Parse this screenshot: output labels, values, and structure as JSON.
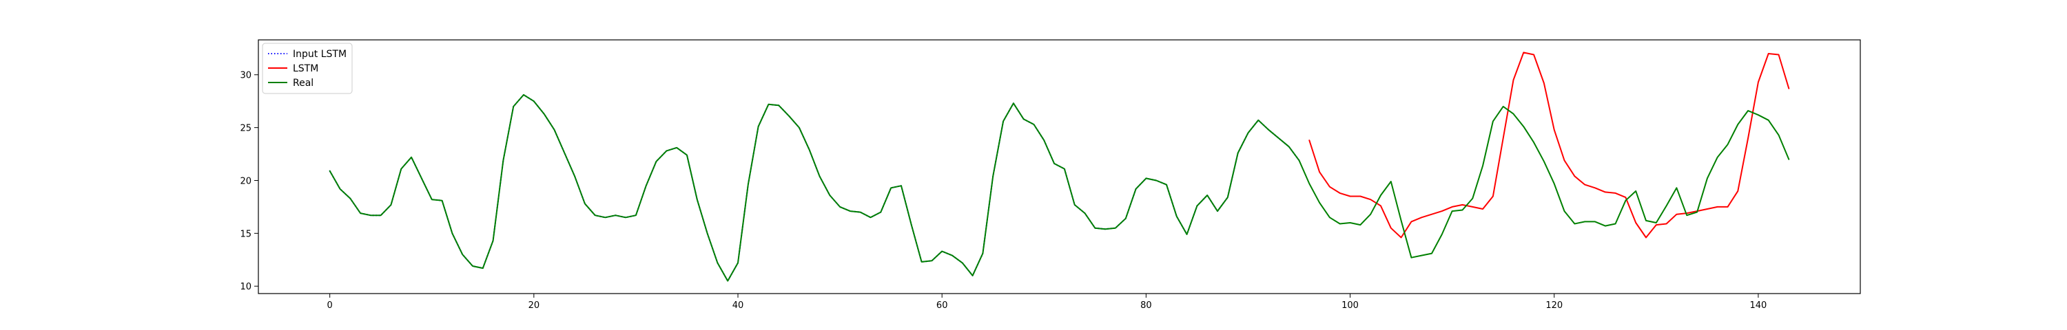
{
  "chart_data": {
    "type": "line",
    "title": "",
    "xlabel": "",
    "ylabel": "",
    "xlim": [
      -7,
      150
    ],
    "ylim": [
      9.3,
      33.3
    ],
    "x_ticks": [
      0,
      20,
      40,
      60,
      80,
      100,
      120,
      140
    ],
    "y_ticks": [
      10,
      15,
      20,
      25,
      30
    ],
    "grid": false,
    "legend_position": "top-left",
    "legend": [
      {
        "label": "Input LSTM",
        "color": "#0000ff",
        "style": "dotted"
      },
      {
        "label": "LSTM",
        "color": "#ff0000",
        "style": "solid"
      },
      {
        "label": "Real",
        "color": "#008000",
        "style": "solid"
      }
    ],
    "series": [
      {
        "name": "Input LSTM",
        "color": "#0000ff",
        "x": [
          0,
          1,
          2,
          3,
          4,
          5,
          6,
          7,
          8,
          9,
          10,
          11,
          12,
          13,
          14,
          15,
          16,
          17,
          18,
          19,
          20,
          21,
          22,
          23,
          24,
          25,
          26,
          27,
          28,
          29,
          30,
          31,
          32,
          33,
          34,
          35,
          36,
          37,
          38,
          39,
          40,
          41,
          42,
          43,
          44,
          45,
          46,
          47,
          48,
          49,
          50,
          51,
          52,
          53,
          54,
          55,
          56,
          57,
          58,
          59,
          60,
          61,
          62,
          63,
          64,
          65,
          66,
          67,
          68,
          69,
          70,
          71,
          72,
          73,
          74,
          75,
          76,
          77,
          78,
          79,
          80,
          81,
          82,
          83,
          84,
          85,
          86,
          87,
          88,
          89,
          90,
          91,
          92,
          93,
          94,
          95
        ],
        "values": [
          20.9,
          19.2,
          18.3,
          16.9,
          16.7,
          16.7,
          17.7,
          21.1,
          22.2,
          20.2,
          18.2,
          18.1,
          15.0,
          13.0,
          11.9,
          11.7,
          14.3,
          21.9,
          27.0,
          28.1,
          27.5,
          26.3,
          24.8,
          22.6,
          20.4,
          17.8,
          16.7,
          16.5,
          16.7,
          16.5,
          16.7,
          19.5,
          21.8,
          22.8,
          23.1,
          22.4,
          18.2,
          15.0,
          12.2,
          10.5,
          12.2,
          19.6,
          25.1,
          27.2,
          27.1,
          26.1,
          25.0,
          22.9,
          20.4,
          18.6,
          17.5,
          17.1,
          17.0,
          16.5,
          17.0,
          19.3,
          19.5,
          15.8,
          12.3,
          12.4,
          13.3,
          12.9,
          12.2,
          11.0,
          13.1,
          20.4,
          25.6,
          27.3,
          25.8,
          25.3,
          23.8,
          21.6,
          21.1,
          17.7,
          16.9,
          15.5,
          15.4,
          15.5,
          16.4,
          19.2,
          20.2,
          20.0,
          19.6,
          16.6,
          14.9,
          17.6,
          18.6,
          17.1,
          18.4,
          22.6,
          24.5,
          25.7,
          24.8,
          24.0,
          23.2,
          21.9
        ]
      },
      {
        "name": "LSTM",
        "color": "#ff0000",
        "x": [
          96,
          97,
          98,
          99,
          100,
          101,
          102,
          103,
          104,
          105,
          106,
          107,
          108,
          109,
          110,
          111,
          112,
          113,
          114,
          115,
          116,
          117,
          118,
          119,
          120,
          121,
          122,
          123,
          124,
          125,
          126,
          127,
          128,
          129,
          130,
          131,
          132,
          133,
          134,
          135,
          136,
          137,
          138,
          139,
          140,
          141,
          142,
          143
        ],
        "values": [
          23.8,
          20.8,
          19.4,
          18.8,
          18.5,
          18.5,
          18.2,
          17.6,
          15.5,
          14.6,
          16.1,
          16.5,
          16.8,
          17.1,
          17.5,
          17.7,
          17.5,
          17.3,
          18.5,
          24.0,
          29.5,
          32.1,
          31.9,
          29.2,
          24.8,
          21.9,
          20.4,
          19.6,
          19.3,
          18.9,
          18.8,
          18.4,
          16.0,
          14.6,
          15.8,
          15.9,
          16.8,
          16.9,
          17.1,
          17.3,
          17.5,
          17.5,
          19.0,
          24.0,
          29.3,
          32.0,
          31.9,
          28.7
        ]
      },
      {
        "name": "Real",
        "color": "#008000",
        "x": [
          0,
          1,
          2,
          3,
          4,
          5,
          6,
          7,
          8,
          9,
          10,
          11,
          12,
          13,
          14,
          15,
          16,
          17,
          18,
          19,
          20,
          21,
          22,
          23,
          24,
          25,
          26,
          27,
          28,
          29,
          30,
          31,
          32,
          33,
          34,
          35,
          36,
          37,
          38,
          39,
          40,
          41,
          42,
          43,
          44,
          45,
          46,
          47,
          48,
          49,
          50,
          51,
          52,
          53,
          54,
          55,
          56,
          57,
          58,
          59,
          60,
          61,
          62,
          63,
          64,
          65,
          66,
          67,
          68,
          69,
          70,
          71,
          72,
          73,
          74,
          75,
          76,
          77,
          78,
          79,
          80,
          81,
          82,
          83,
          84,
          85,
          86,
          87,
          88,
          89,
          90,
          91,
          92,
          93,
          94,
          95,
          96,
          97,
          98,
          99,
          100,
          101,
          102,
          103,
          104,
          105,
          106,
          107,
          108,
          109,
          110,
          111,
          112,
          113,
          114,
          115,
          116,
          117,
          118,
          119,
          120,
          121,
          122,
          123,
          124,
          125,
          126,
          127,
          128,
          129,
          130,
          131,
          132,
          133,
          134,
          135,
          136,
          137,
          138,
          139,
          140,
          141,
          142,
          143
        ],
        "values": [
          20.9,
          19.2,
          18.3,
          16.9,
          16.7,
          16.7,
          17.7,
          21.1,
          22.2,
          20.2,
          18.2,
          18.1,
          15.0,
          13.0,
          11.9,
          11.7,
          14.3,
          21.9,
          27.0,
          28.1,
          27.5,
          26.3,
          24.8,
          22.6,
          20.4,
          17.8,
          16.7,
          16.5,
          16.7,
          16.5,
          16.7,
          19.5,
          21.8,
          22.8,
          23.1,
          22.4,
          18.2,
          15.0,
          12.2,
          10.5,
          12.2,
          19.6,
          25.1,
          27.2,
          27.1,
          26.1,
          25.0,
          22.9,
          20.4,
          18.6,
          17.5,
          17.1,
          17.0,
          16.5,
          17.0,
          19.3,
          19.5,
          15.8,
          12.3,
          12.4,
          13.3,
          12.9,
          12.2,
          11.0,
          13.1,
          20.4,
          25.6,
          27.3,
          25.8,
          25.3,
          23.8,
          21.6,
          21.1,
          17.7,
          16.9,
          15.5,
          15.4,
          15.5,
          16.4,
          19.2,
          20.2,
          20.0,
          19.6,
          16.6,
          14.9,
          17.6,
          18.6,
          17.1,
          18.4,
          22.6,
          24.5,
          25.7,
          24.8,
          24.0,
          23.2,
          21.9,
          19.7,
          17.9,
          16.5,
          15.9,
          16.0,
          15.8,
          16.8,
          18.6,
          19.9,
          16.2,
          12.7,
          12.9,
          13.1,
          14.9,
          17.1,
          17.2,
          18.3,
          21.4,
          25.6,
          27.0,
          26.3,
          25.1,
          23.6,
          21.8,
          19.7,
          17.1,
          15.9,
          16.1,
          16.1,
          15.7,
          15.9,
          18.1,
          19.0,
          16.2,
          16.0,
          17.6,
          19.3,
          16.7,
          17.0,
          20.2,
          22.2,
          23.4,
          25.3,
          26.6,
          26.2,
          25.7,
          24.3,
          22.0
        ]
      }
    ]
  }
}
